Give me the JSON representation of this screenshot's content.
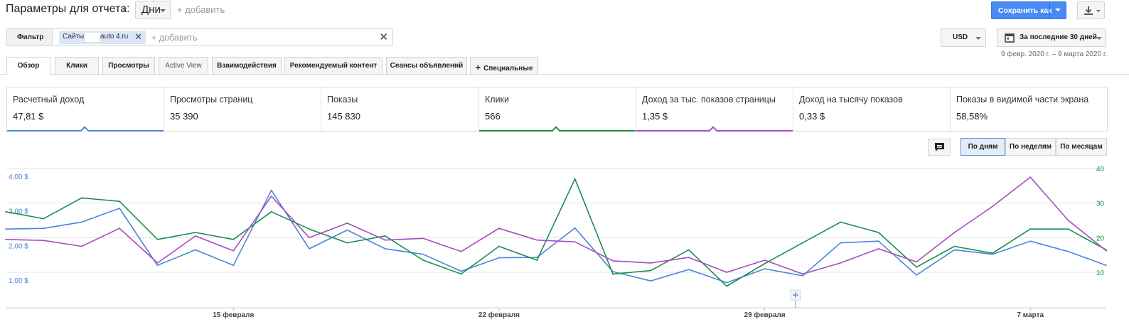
{
  "header": {
    "title": "Параметры для отчета:",
    "dimension": "Дни",
    "add_dimension": "+ добавить",
    "save_as": "Сохранить как"
  },
  "filter": {
    "label": "Фильтр",
    "chip_prefix": "Сайты",
    "chip_mid": "auto",
    "chip_suffix": "4.ru",
    "add": "+ добавить",
    "clear": "✕"
  },
  "currency": "USD",
  "date_selector": {
    "label": "За последние 30 дней",
    "range": "9 февр. 2020 г. – 9 марта 2020 г."
  },
  "tabs": [
    {
      "label": "Обзор",
      "active": true
    },
    {
      "label": "Клики",
      "active": false
    },
    {
      "label": "Просмотры",
      "active": false
    },
    {
      "label": "Active View",
      "active": false
    },
    {
      "label": "Взаимодействия",
      "active": false
    },
    {
      "label": "Рекомендуемый контент",
      "active": false
    },
    {
      "label": "Сеансы объявлений",
      "active": false
    },
    {
      "label": "Специальные",
      "active": false
    }
  ],
  "scorecards": [
    {
      "name": "Расчетный доход",
      "value": "47,81 $",
      "color": "#4a86d8",
      "selected": true
    },
    {
      "name": "Просмотры страниц",
      "value": "35 390",
      "selected": false
    },
    {
      "name": "Показы",
      "value": "145 830",
      "selected": false
    },
    {
      "name": "Клики",
      "value": "566",
      "color": "#1a8f4c",
      "selected": true
    },
    {
      "name": "Доход за тыс. показов страницы",
      "value": "1,35 $",
      "color": "#a64cbf",
      "selected": true
    },
    {
      "name": "Доход на тысячу показов",
      "value": "0,33 $",
      "selected": false
    },
    {
      "name": "Показы в видимой части экрана",
      "value": "58,58%",
      "selected": false
    }
  ],
  "view_toggle": {
    "day": "По дням",
    "week": "По неделям",
    "month": "По месяцам",
    "active": "day"
  },
  "chart_data": {
    "type": "line",
    "left_axis": {
      "ticks": [
        "4,00 $",
        "3,00 $",
        "2,00 $",
        "1,00 $"
      ],
      "values": [
        4,
        3,
        2,
        1
      ],
      "color": "#4a86d8"
    },
    "right_axis": {
      "ticks": [
        "40",
        "30",
        "20",
        "10"
      ],
      "values": [
        40,
        30,
        20,
        10
      ],
      "color": "#1a8f4c"
    },
    "x_labels": [
      {
        "label": "15 февраля",
        "index": 6
      },
      {
        "label": "22 февраля",
        "index": 13
      },
      {
        "label": "29 февраля",
        "index": 20
      },
      {
        "label": "7 марта",
        "index": 27
      }
    ],
    "series": [
      {
        "metric": "Расчетный доход",
        "axis": "left",
        "color": "#4a86d8",
        "values": [
          2.25,
          2.27,
          2.45,
          2.85,
          1.2,
          1.65,
          1.2,
          3.37,
          1.68,
          2.22,
          1.68,
          1.52,
          1.03,
          1.42,
          1.43,
          2.28,
          1.02,
          0.75,
          1.08,
          0.7,
          1.1,
          0.9,
          1.85,
          1.9,
          0.92,
          1.65,
          1.52,
          1.9,
          1.6,
          1.2
        ]
      },
      {
        "metric": "Клики",
        "axis": "right",
        "color": "#1a8f4c",
        "values": [
          27.5,
          25.5,
          31.5,
          30.5,
          19.5,
          21.5,
          19.5,
          27.5,
          22.5,
          18.5,
          20.5,
          13.5,
          9.5,
          17.5,
          13.5,
          37,
          9.5,
          10.5,
          16.5,
          6,
          12.5,
          18.5,
          24.5,
          21.5,
          11.5,
          17.5,
          15.5,
          22.5,
          22.5,
          16.5
        ]
      },
      {
        "metric": "Доход за тыс. показов страницы",
        "axis": "left",
        "color": "#a64cbf",
        "values": [
          1.95,
          1.92,
          1.75,
          2.27,
          1.27,
          2.05,
          1.62,
          3.2,
          2.0,
          2.42,
          1.93,
          1.98,
          1.6,
          2.27,
          1.93,
          1.88,
          1.33,
          1.27,
          1.43,
          1.0,
          1.35,
          0.95,
          1.27,
          1.68,
          1.3,
          2.15,
          2.9,
          3.75,
          2.5,
          1.62
        ]
      }
    ]
  }
}
